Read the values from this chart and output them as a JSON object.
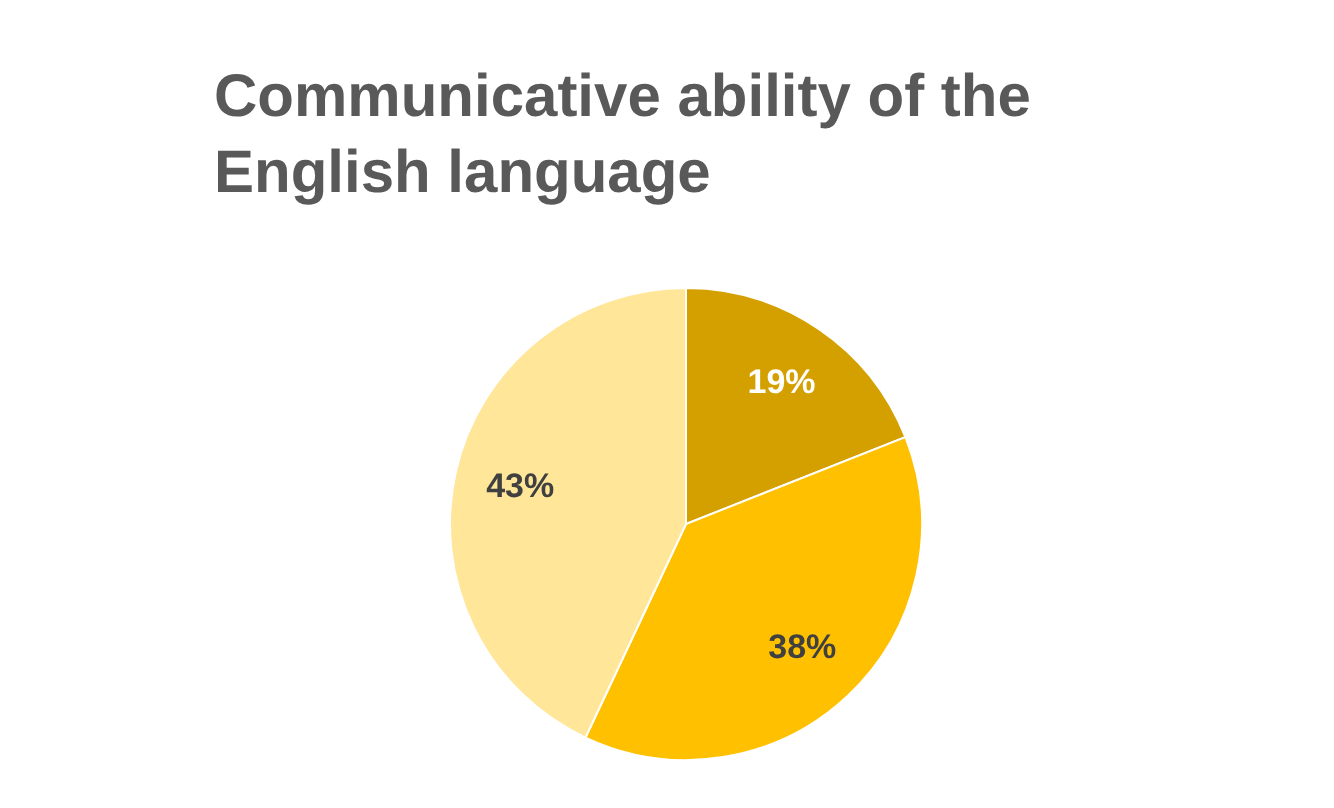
{
  "chart_data": {
    "type": "pie",
    "title": "Communicative ability of the English language",
    "categories": [
      null,
      null,
      null
    ],
    "values": [
      19,
      38,
      43
    ],
    "colors": [
      "#d4a000",
      "#ffc000",
      "#ffe699"
    ],
    "value_labels": [
      "19%",
      "38%",
      "43%"
    ],
    "legend": false
  }
}
